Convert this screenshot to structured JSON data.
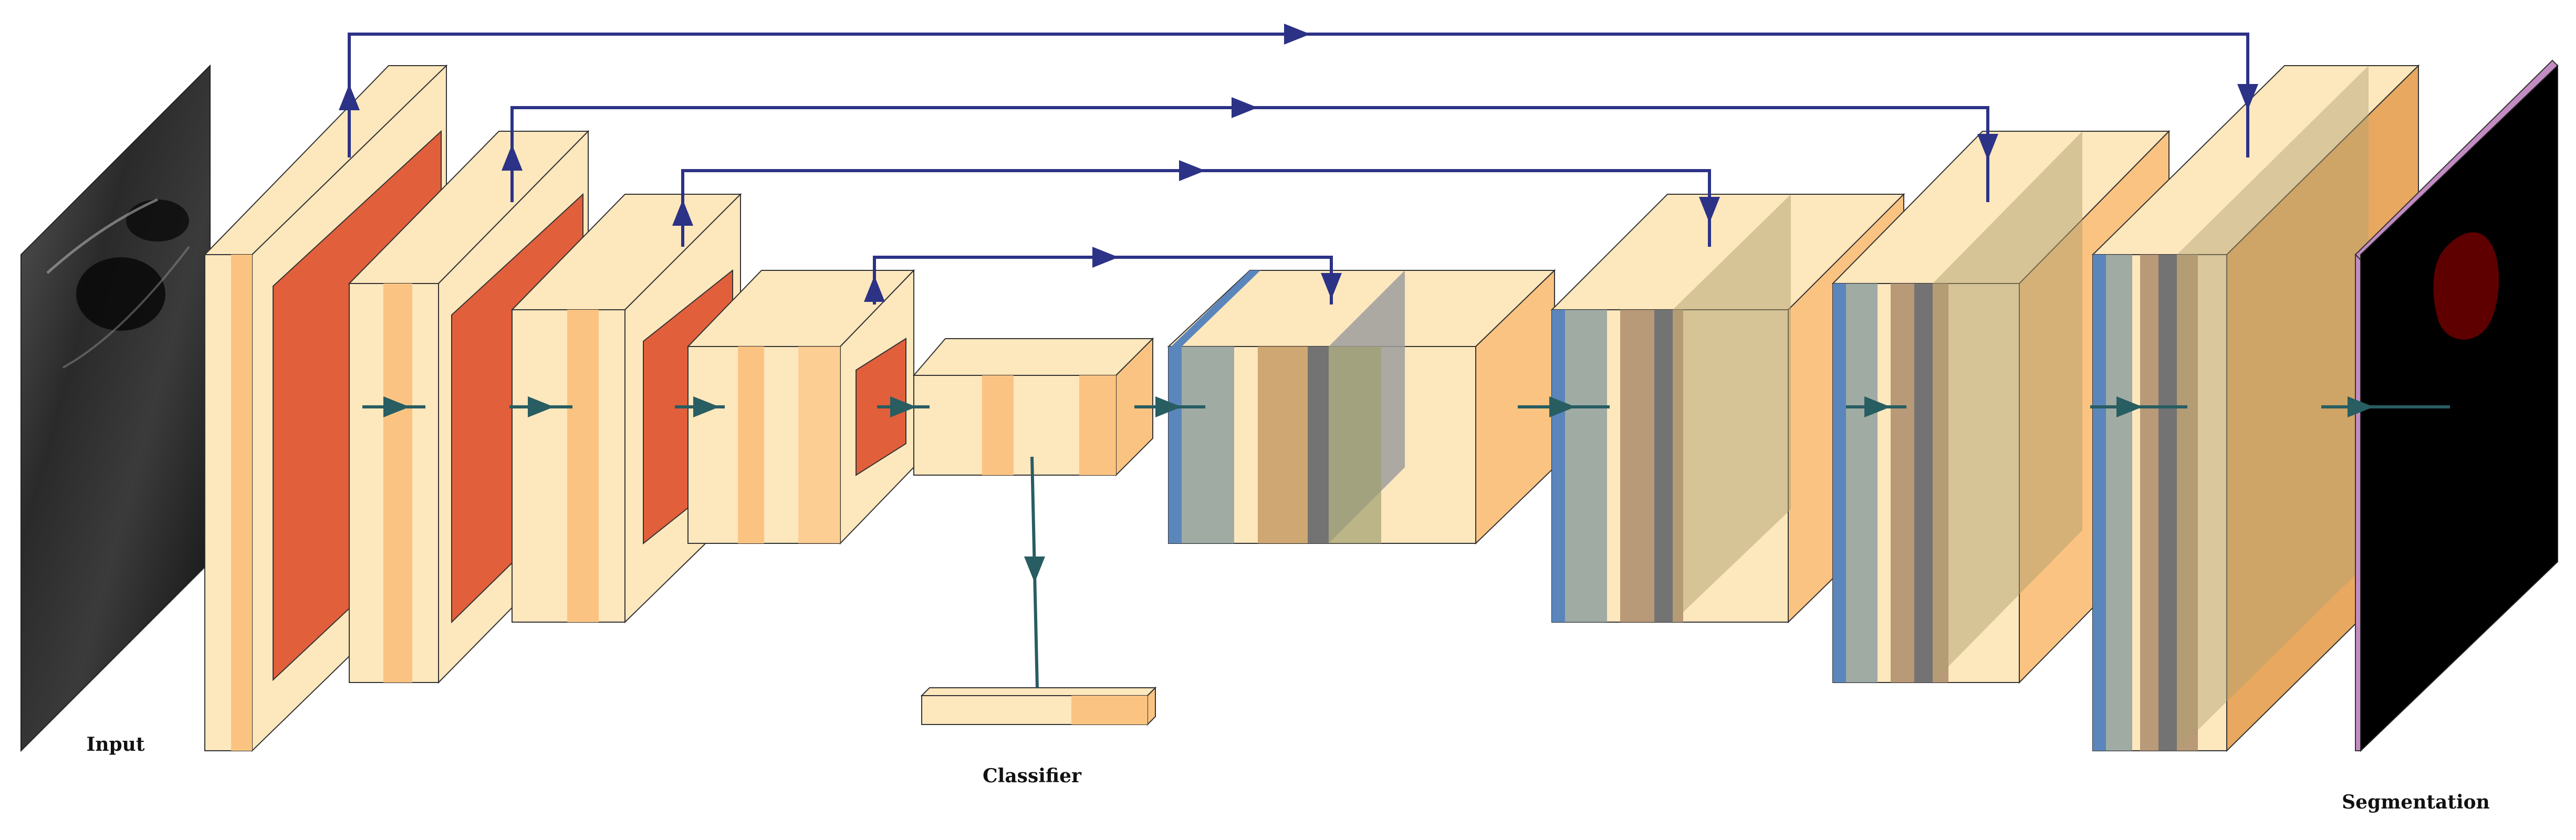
{
  "labels": {
    "input": "Input",
    "classifier": "Classifier",
    "segmentation": "Segmentation"
  },
  "colors": {
    "light_tan": "#fde7bd",
    "orange": "#fbc381",
    "red_orange": "#e25f3b",
    "blue": "#5b86bc",
    "gray": "#9d9d9d",
    "dark_gray": "#737373",
    "skip_arrow": "#2c3286",
    "flow_arrow": "#285d62",
    "mask": "#5e0000",
    "pink": "#c28bc2"
  },
  "icons": {
    "skip_connection": "arrow-icon",
    "data_flow": "arrow-icon"
  }
}
